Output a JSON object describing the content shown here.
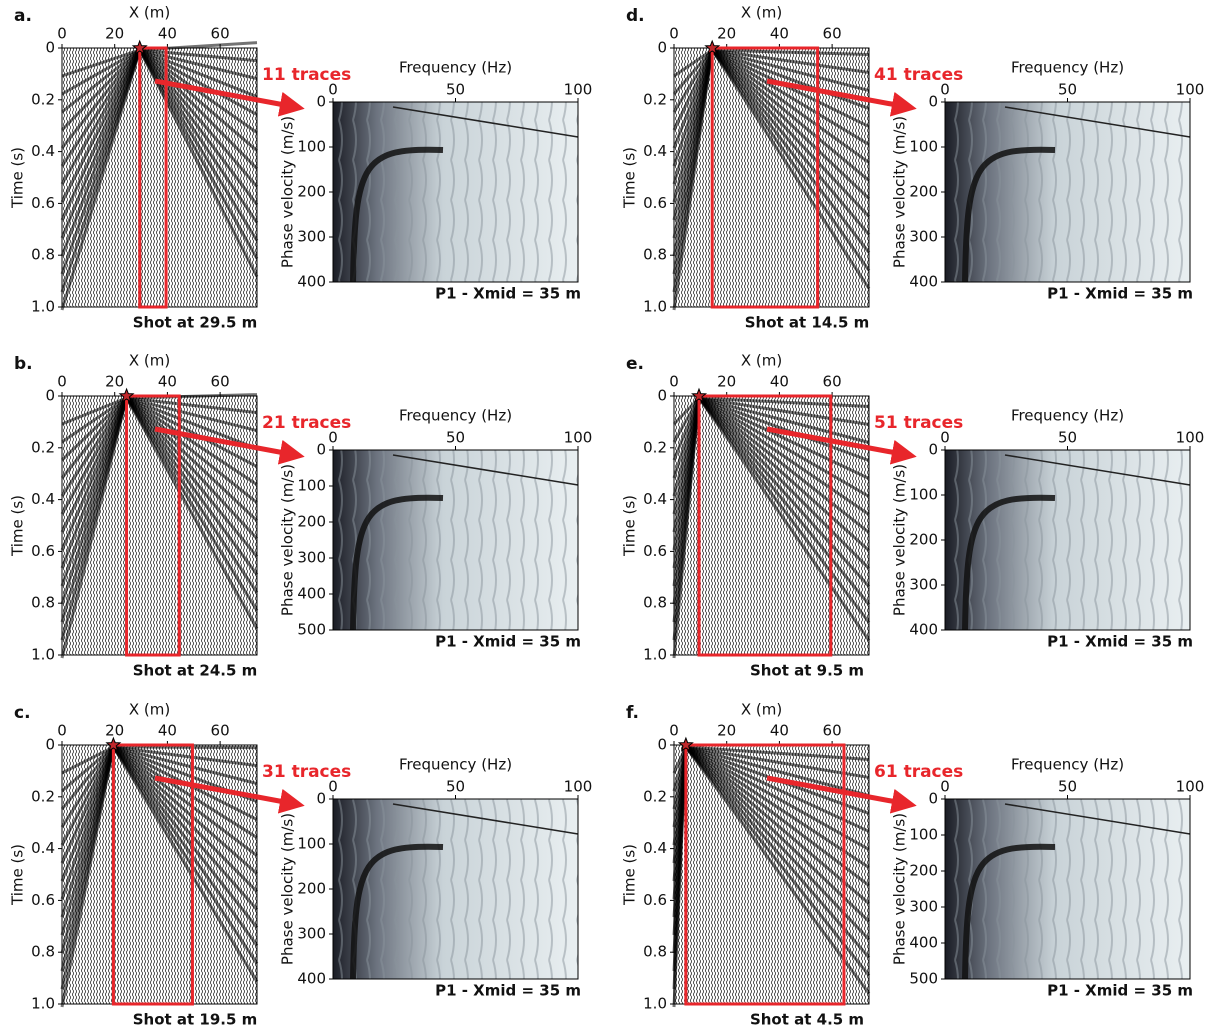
{
  "chart_data": [
    {
      "type": "seismogram",
      "panel_label": "a.",
      "xlabel": "X (m)",
      "ylabel": "Time (s)",
      "xlim": [
        0,
        74
      ],
      "xticks": [
        0,
        20,
        40,
        60
      ],
      "ylim": [
        {
          "value": 1,
          "label": "1.0"
        },
        0
      ],
      "yticks": [
        0,
        0.2,
        0.4,
        0.6,
        0.8,
        {
          "value": 1,
          "label": "1.0"
        }
      ],
      "shot_x": 29.5,
      "window": [
        29.5,
        39.5
      ],
      "caption": "Shot at 29.5 m"
    },
    {
      "type": "dispersion",
      "annotation": "11 traces",
      "xlabel": "Frequency (Hz)",
      "ylabel": "Phase velocity (m/s)",
      "xlim": [
        0,
        100
      ],
      "xticks": [
        0,
        50,
        100
      ],
      "ylim": [
        400,
        0
      ],
      "yticks": [
        0,
        100,
        200,
        300,
        400
      ],
      "caption": "P1 - Xmid = 35 m"
    },
    {
      "type": "seismogram",
      "panel_label": "b.",
      "xlabel": "X (m)",
      "ylabel": "Time (s)",
      "xlim": [
        0,
        74
      ],
      "xticks": [
        0,
        20,
        40,
        60
      ],
      "ylim": [
        {
          "value": 1,
          "label": "1.0"
        },
        0
      ],
      "yticks": [
        0,
        0.2,
        0.4,
        0.6,
        0.8,
        {
          "value": 1,
          "label": "1.0"
        }
      ],
      "shot_x": 24.5,
      "window": [
        24.5,
        44.5
      ],
      "caption": "Shot at 24.5 m"
    },
    {
      "type": "dispersion",
      "annotation": "21 traces",
      "xlabel": "Frequency (Hz)",
      "ylabel": "Phase velocity (m/s)",
      "xlim": [
        0,
        100
      ],
      "xticks": [
        0,
        50,
        100
      ],
      "ylim": [
        500,
        0
      ],
      "yticks": [
        0,
        100,
        200,
        300,
        400,
        500
      ],
      "caption": "P1 - Xmid = 35 m"
    },
    {
      "type": "seismogram",
      "panel_label": "c.",
      "xlabel": "X (m)",
      "ylabel": "Time (s)",
      "xlim": [
        0,
        74
      ],
      "xticks": [
        0,
        20,
        40,
        60
      ],
      "ylim": [
        {
          "value": 1,
          "label": "1.0"
        },
        0
      ],
      "yticks": [
        0,
        0.2,
        0.4,
        0.6,
        0.8,
        {
          "value": 1,
          "label": "1.0"
        }
      ],
      "shot_x": 19.5,
      "window": [
        19.5,
        49.5
      ],
      "caption": "Shot at 19.5 m"
    },
    {
      "type": "dispersion",
      "annotation": "31 traces",
      "xlabel": "Frequency (Hz)",
      "ylabel": "Phase velocity (m/s)",
      "xlim": [
        0,
        100
      ],
      "xticks": [
        0,
        50,
        100
      ],
      "ylim": [
        400,
        0
      ],
      "yticks": [
        0,
        100,
        200,
        300,
        400
      ],
      "caption": "P1 - Xmid = 35 m"
    },
    {
      "type": "seismogram",
      "panel_label": "d.",
      "xlabel": "X (m)",
      "ylabel": "Time (s)",
      "xlim": [
        0,
        74
      ],
      "xticks": [
        0,
        20,
        40,
        60
      ],
      "ylim": [
        {
          "value": 1,
          "label": "1.0"
        },
        0
      ],
      "yticks": [
        0,
        0.2,
        0.4,
        0.6,
        0.8,
        {
          "value": 1,
          "label": "1.0"
        }
      ],
      "shot_x": 14.5,
      "window": [
        14.5,
        54.5
      ],
      "caption": "Shot at 14.5 m"
    },
    {
      "type": "dispersion",
      "annotation": "41 traces",
      "xlabel": "Frequency (Hz)",
      "ylabel": "Phase velocity (m/s)",
      "xlim": [
        0,
        100
      ],
      "xticks": [
        0,
        50,
        100
      ],
      "ylim": [
        400,
        0
      ],
      "yticks": [
        0,
        100,
        200,
        300,
        400
      ],
      "caption": "P1 - Xmid = 35 m"
    },
    {
      "type": "seismogram",
      "panel_label": "e.",
      "xlabel": "X (m)",
      "ylabel": "Time (s)",
      "xlim": [
        0,
        74
      ],
      "xticks": [
        0,
        20,
        40,
        60
      ],
      "ylim": [
        {
          "value": 1,
          "label": "1.0"
        },
        0
      ],
      "yticks": [
        0,
        0.2,
        0.4,
        0.6,
        0.8,
        {
          "value": 1,
          "label": "1.0"
        }
      ],
      "shot_x": 9.5,
      "window": [
        9.5,
        59.5
      ],
      "caption": "Shot at 9.5 m"
    },
    {
      "type": "dispersion",
      "annotation": "51 traces",
      "xlabel": "Frequency (Hz)",
      "ylabel": "Phase velocity (m/s)",
      "xlim": [
        0,
        100
      ],
      "xticks": [
        0,
        50,
        100
      ],
      "ylim": [
        400,
        0
      ],
      "yticks": [
        0,
        100,
        200,
        300,
        400
      ],
      "caption": "P1 - Xmid = 35 m"
    },
    {
      "type": "seismogram",
      "panel_label": "f.",
      "xlabel": "X (m)",
      "ylabel": "Time (s)",
      "xlim": [
        0,
        74
      ],
      "xticks": [
        0,
        20,
        40,
        60
      ],
      "ylim": [
        {
          "value": 1,
          "label": "1.0"
        },
        0
      ],
      "yticks": [
        0,
        0.2,
        0.4,
        0.6,
        0.8,
        {
          "value": 1,
          "label": "1.0"
        }
      ],
      "shot_x": 4.5,
      "window": [
        4.5,
        64.5
      ],
      "caption": "Shot at 4.5 m"
    },
    {
      "type": "dispersion",
      "annotation": "61 traces",
      "xlabel": "Frequency (Hz)",
      "ylabel": "Phase velocity (m/s)",
      "xlim": [
        0,
        100
      ],
      "xticks": [
        0,
        50,
        100
      ],
      "ylim": [
        500,
        0
      ],
      "yticks": [
        0,
        100,
        200,
        300,
        400,
        500
      ],
      "caption": "P1 - Xmid = 35 m"
    }
  ]
}
